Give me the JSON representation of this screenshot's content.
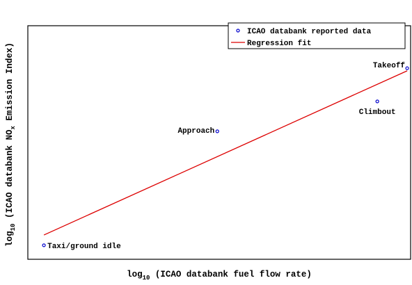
{
  "chart_data": {
    "type": "scatter",
    "xlabel": [
      "log",
      "10",
      " (ICAO databank fuel flow rate)"
    ],
    "ylabel": [
      "log",
      "10",
      " (ICAO databank NO",
      "x",
      " Emission Index)"
    ],
    "xlim": [
      0,
      1
    ],
    "ylim": [
      0,
      1
    ],
    "legend": "upper right",
    "series": [
      {
        "name": "ICAO databank reported data",
        "color": "#0000cc",
        "kind": "points",
        "labels": [
          "Taxi/ground idle",
          "Approach",
          "Climbout",
          "Takeoff"
        ],
        "x": [
          0.042,
          0.495,
          0.913,
          0.991
        ],
        "values": [
          0.06,
          0.548,
          0.676,
          0.818
        ]
      },
      {
        "name": "Regression fit",
        "color": "#dd0000",
        "kind": "line",
        "x": [
          0.042,
          0.991
        ],
        "values": [
          0.104,
          0.807
        ]
      }
    ]
  }
}
